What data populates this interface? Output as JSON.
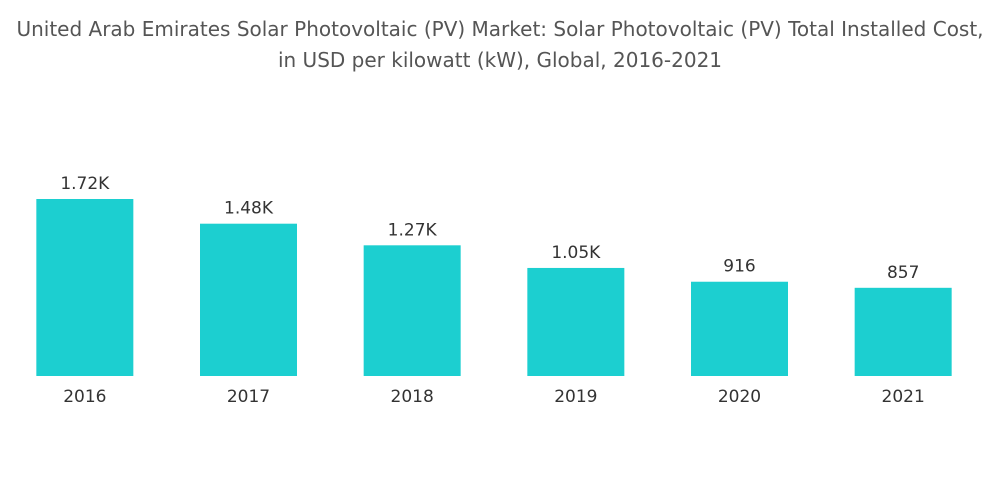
{
  "chart_data": {
    "type": "bar",
    "title": "United Arab Emirates Solar Photovoltaic (PV) Market: Solar Photovoltaic (PV) Total Installed Cost, in USD per kilowatt (kW), Global, 2016-2021",
    "categories": [
      "2016",
      "2017",
      "2018",
      "2019",
      "2020",
      "2021"
    ],
    "values": [
      1720,
      1480,
      1270,
      1050,
      916,
      857
    ],
    "value_labels": [
      "1.72K",
      "1.48K",
      "1.27K",
      "1.05K",
      "916",
      "857"
    ],
    "color": "#1ccfd0"
  }
}
